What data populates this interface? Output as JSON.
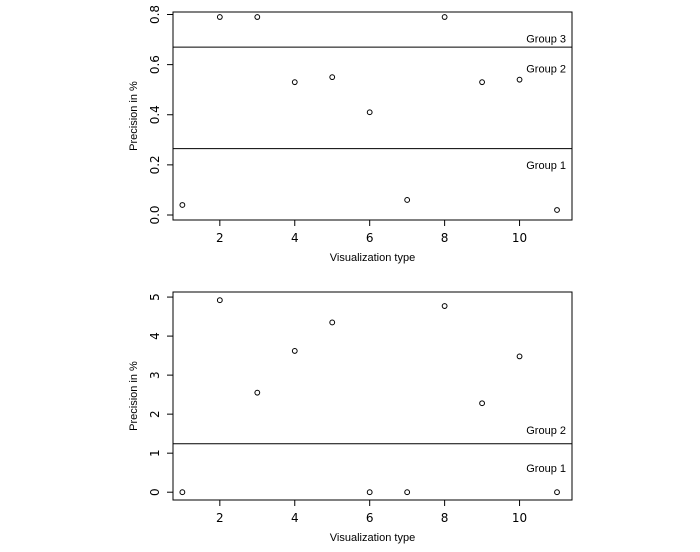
{
  "chart_data": [
    {
      "type": "scatter",
      "xlabel": "Visualization type",
      "ylabel": "Precision in %",
      "xlim": [
        0.75,
        11.4
      ],
      "ylim": [
        -0.02,
        0.81
      ],
      "xticks": [
        2,
        4,
        6,
        8,
        10
      ],
      "yticks": [
        0.0,
        0.2,
        0.4,
        0.6,
        0.8
      ],
      "ytick_labels": [
        "0.0",
        "0.2",
        "0.4",
        "0.6",
        "0.8"
      ],
      "x": [
        1,
        2,
        3,
        4,
        5,
        6,
        7,
        8,
        9,
        10,
        11
      ],
      "y": [
        0.04,
        0.79,
        0.79,
        0.53,
        0.55,
        0.41,
        0.06,
        0.79,
        0.53,
        0.54,
        0.02
      ],
      "hlines": [
        0.67,
        0.265
      ],
      "annotations": [
        {
          "text": "Group 3",
          "y": 0.7
        },
        {
          "text": "Group 2",
          "y": 0.58
        },
        {
          "text": "Group 1",
          "y": 0.195
        }
      ],
      "grid": false
    },
    {
      "type": "scatter",
      "xlabel": "Visualization type",
      "ylabel": "Precision in %",
      "xlim": [
        0.75,
        11.4
      ],
      "ylim": [
        -0.2,
        5.13
      ],
      "xticks": [
        2,
        4,
        6,
        8,
        10
      ],
      "yticks": [
        0,
        1,
        2,
        3,
        4,
        5
      ],
      "ytick_labels": [
        "0",
        "1",
        "2",
        "3",
        "4",
        "5"
      ],
      "x": [
        1,
        2,
        3,
        4,
        5,
        6,
        7,
        8,
        9,
        10,
        11
      ],
      "y": [
        0.0,
        4.92,
        2.55,
        3.62,
        4.35,
        0.0,
        0.0,
        4.77,
        2.28,
        3.48,
        0.0
      ],
      "hlines": [
        1.24
      ],
      "annotations": [
        {
          "text": "Group 2",
          "y": 1.57
        },
        {
          "text": "Group 1",
          "y": 0.59
        }
      ],
      "grid": false
    }
  ]
}
